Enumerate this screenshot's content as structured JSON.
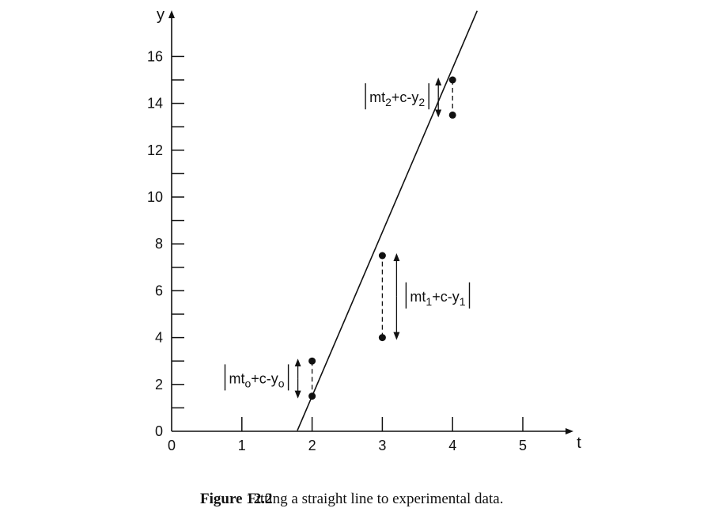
{
  "chart_data": {
    "type": "scatter",
    "xlabel": "t",
    "ylabel": "y",
    "xlim": [
      0,
      5.6
    ],
    "ylim": [
      0,
      16.8
    ],
    "x_ticks": [
      0,
      1,
      2,
      3,
      4,
      5
    ],
    "y_ticks_labeled": [
      0,
      2,
      4,
      6,
      8,
      10,
      12,
      14,
      16
    ],
    "y_ticks_minor": [
      1,
      3,
      5,
      7,
      9,
      11,
      13,
      15
    ],
    "grid": false,
    "series": [
      {
        "x": [
          2,
          3,
          4
        ],
        "y": [
          3,
          4,
          15
        ]
      }
    ],
    "fit_line": {
      "slope": 7.0,
      "intercept": -12.5,
      "x_range": [
        1.79,
        4.35
      ]
    },
    "residuals": [
      {
        "t": 2,
        "y_data": 3,
        "y_fit": 1.5,
        "label": {
          "base": "mt",
          "sub": "o",
          "rest": "+c-y",
          "sub2": "o"
        },
        "side": "left"
      },
      {
        "t": 3,
        "y_data": 4,
        "y_fit": 7.5,
        "label": {
          "base": "mt",
          "sub": "1",
          "rest": "+c-y",
          "sub2": "1"
        },
        "side": "right"
      },
      {
        "t": 4,
        "y_data": 15,
        "y_fit": 13.5,
        "label": {
          "base": "mt",
          "sub": "2",
          "rest": "+c-y",
          "sub2": "2"
        },
        "side": "left"
      }
    ]
  },
  "caption": {
    "label": "Figure 12.2",
    "text": "Fitting a straight line to experimental data."
  }
}
